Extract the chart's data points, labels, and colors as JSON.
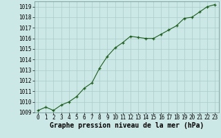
{
  "x": [
    0,
    1,
    2,
    3,
    4,
    5,
    6,
    7,
    8,
    9,
    10,
    11,
    12,
    13,
    14,
    15,
    16,
    17,
    18,
    19,
    20,
    21,
    22,
    23
  ],
  "y": [
    1009.2,
    1009.5,
    1009.2,
    1009.7,
    1010.0,
    1010.5,
    1011.3,
    1011.8,
    1013.2,
    1014.3,
    1015.1,
    1015.6,
    1016.2,
    1016.1,
    1016.0,
    1016.0,
    1016.4,
    1016.8,
    1017.2,
    1017.9,
    1018.0,
    1018.5,
    1019.0,
    1019.2
  ],
  "ylim": [
    1009,
    1019.5
  ],
  "xlim": [
    -0.5,
    23.5
  ],
  "yticks": [
    1009,
    1010,
    1011,
    1012,
    1013,
    1014,
    1015,
    1016,
    1017,
    1018,
    1019
  ],
  "xticks": [
    0,
    1,
    2,
    3,
    4,
    5,
    6,
    7,
    8,
    9,
    10,
    11,
    12,
    13,
    14,
    15,
    16,
    17,
    18,
    19,
    20,
    21,
    22,
    23
  ],
  "line_color": "#1a5c1a",
  "marker": "+",
  "bg_color": "#cce8e6",
  "grid_color": "#aaccca",
  "xlabel": "Graphe pression niveau de la mer (hPa)",
  "xlabel_fontsize": 7,
  "tick_fontsize": 5.5,
  "ytick_fontsize": 5.5
}
